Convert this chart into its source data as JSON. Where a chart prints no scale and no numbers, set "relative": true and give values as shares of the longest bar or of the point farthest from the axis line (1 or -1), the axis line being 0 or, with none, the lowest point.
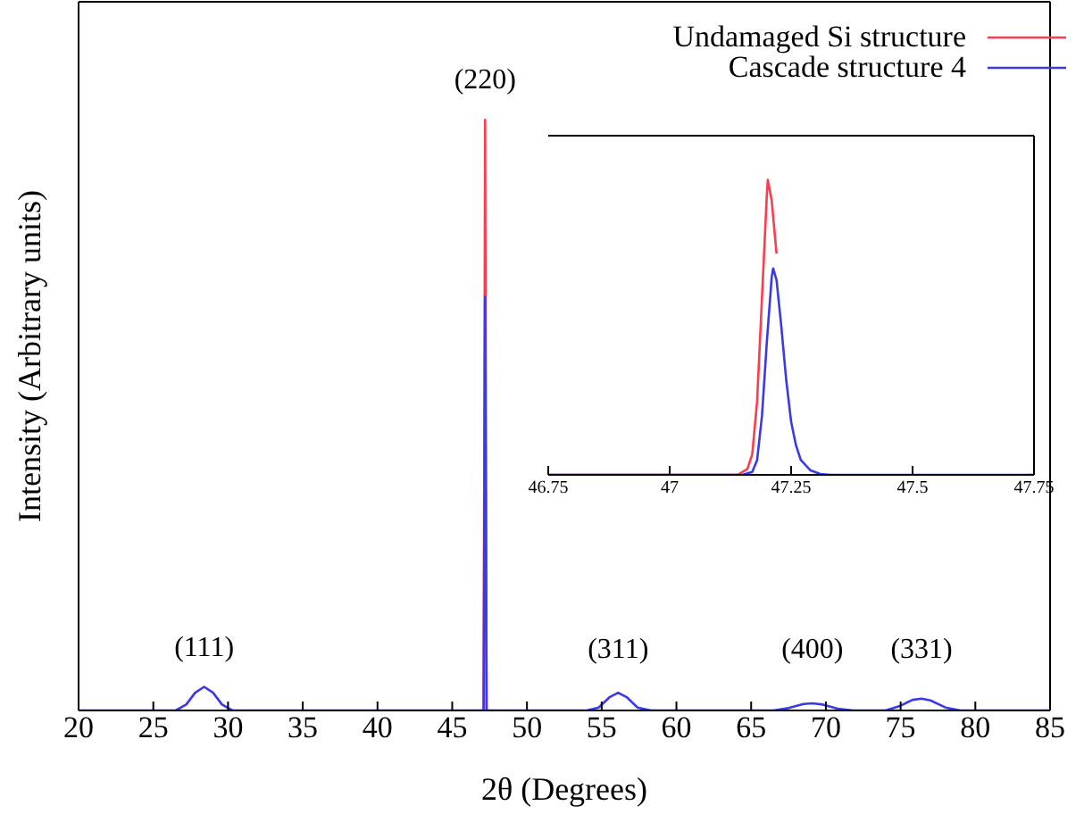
{
  "chart_data": [
    {
      "type": "line",
      "relative": true,
      "xlabel": "2θ (Degrees)",
      "ylabel": "Intensity (Arbitrary units)",
      "xlim": [
        20,
        85
      ],
      "xticks": [
        20,
        25,
        30,
        35,
        40,
        45,
        50,
        55,
        60,
        65,
        70,
        75,
        80,
        85
      ],
      "legend": "top right",
      "tick_labels": "x",
      "grid": false,
      "marker": "none",
      "line_style": "solid",
      "x": [
        20,
        26.5,
        27.2,
        27.8,
        28.4,
        29,
        29.6,
        30.3,
        46.9,
        47.1,
        47.2,
        47.3,
        47.5,
        54,
        54.8,
        55.5,
        56.1,
        56.7,
        57.4,
        58.3,
        66.5,
        67.5,
        68.5,
        69.1,
        69.8,
        70.8,
        71.8,
        74,
        75,
        75.8,
        76.4,
        77,
        78,
        79,
        85
      ],
      "series": [
        {
          "name": "Undamaged Si structure",
          "color": "#ff3b4e",
          "values": [
            null,
            null,
            null,
            null,
            null,
            null,
            null,
            null,
            null,
            0,
            1,
            0,
            null,
            null,
            null,
            null,
            null,
            null,
            null,
            null,
            null,
            null,
            null,
            null,
            null,
            null,
            null,
            null,
            null,
            null,
            null,
            null,
            null,
            null,
            null
          ]
        },
        {
          "name": "Cascade structure 4",
          "color": "#3a3ae8",
          "values": [
            0,
            0,
            0.01,
            0.03,
            0.04,
            0.03,
            0.01,
            0,
            0,
            0,
            0.7,
            0,
            0,
            0,
            0.005,
            0.022,
            0.03,
            0.022,
            0.005,
            0,
            0,
            0.004,
            0.011,
            0.012,
            0.01,
            0.003,
            0,
            0,
            0.008,
            0.018,
            0.02,
            0.017,
            0.005,
            0,
            0
          ]
        }
      ],
      "annotations": [
        "(111)",
        "(220)",
        "(311)",
        "(400)",
        "(331)"
      ]
    },
    {
      "type": "line",
      "relative": true,
      "xlim": [
        46.75,
        47.75
      ],
      "xticks": [
        46.75,
        47,
        47.25,
        47.5,
        47.75
      ],
      "tick_labels": "x",
      "grid": false,
      "legend": false,
      "marker": "none",
      "line_style": "solid",
      "series": [
        {
          "color": "#ff3b4e",
          "x": [
            46.75,
            47.14,
            47.16,
            47.17,
            47.18,
            47.19,
            47.2,
            47.202,
            47.21,
            47.22
          ],
          "values": [
            0,
            0,
            0.02,
            0.07,
            0.25,
            0.6,
            0.95,
            1,
            0.93,
            0.75
          ]
        },
        {
          "color": "#3a3ae8",
          "x": [
            46.75,
            47.15,
            47.17,
            47.18,
            47.19,
            47.2,
            47.21,
            47.213,
            47.22,
            47.23,
            47.24,
            47.25,
            47.26,
            47.27,
            47.29,
            47.31,
            47.33,
            47.75
          ],
          "values": [
            0,
            0,
            0.01,
            0.05,
            0.2,
            0.45,
            0.67,
            0.7,
            0.66,
            0.5,
            0.32,
            0.18,
            0.1,
            0.05,
            0.015,
            0.003,
            0,
            0
          ]
        }
      ]
    }
  ]
}
